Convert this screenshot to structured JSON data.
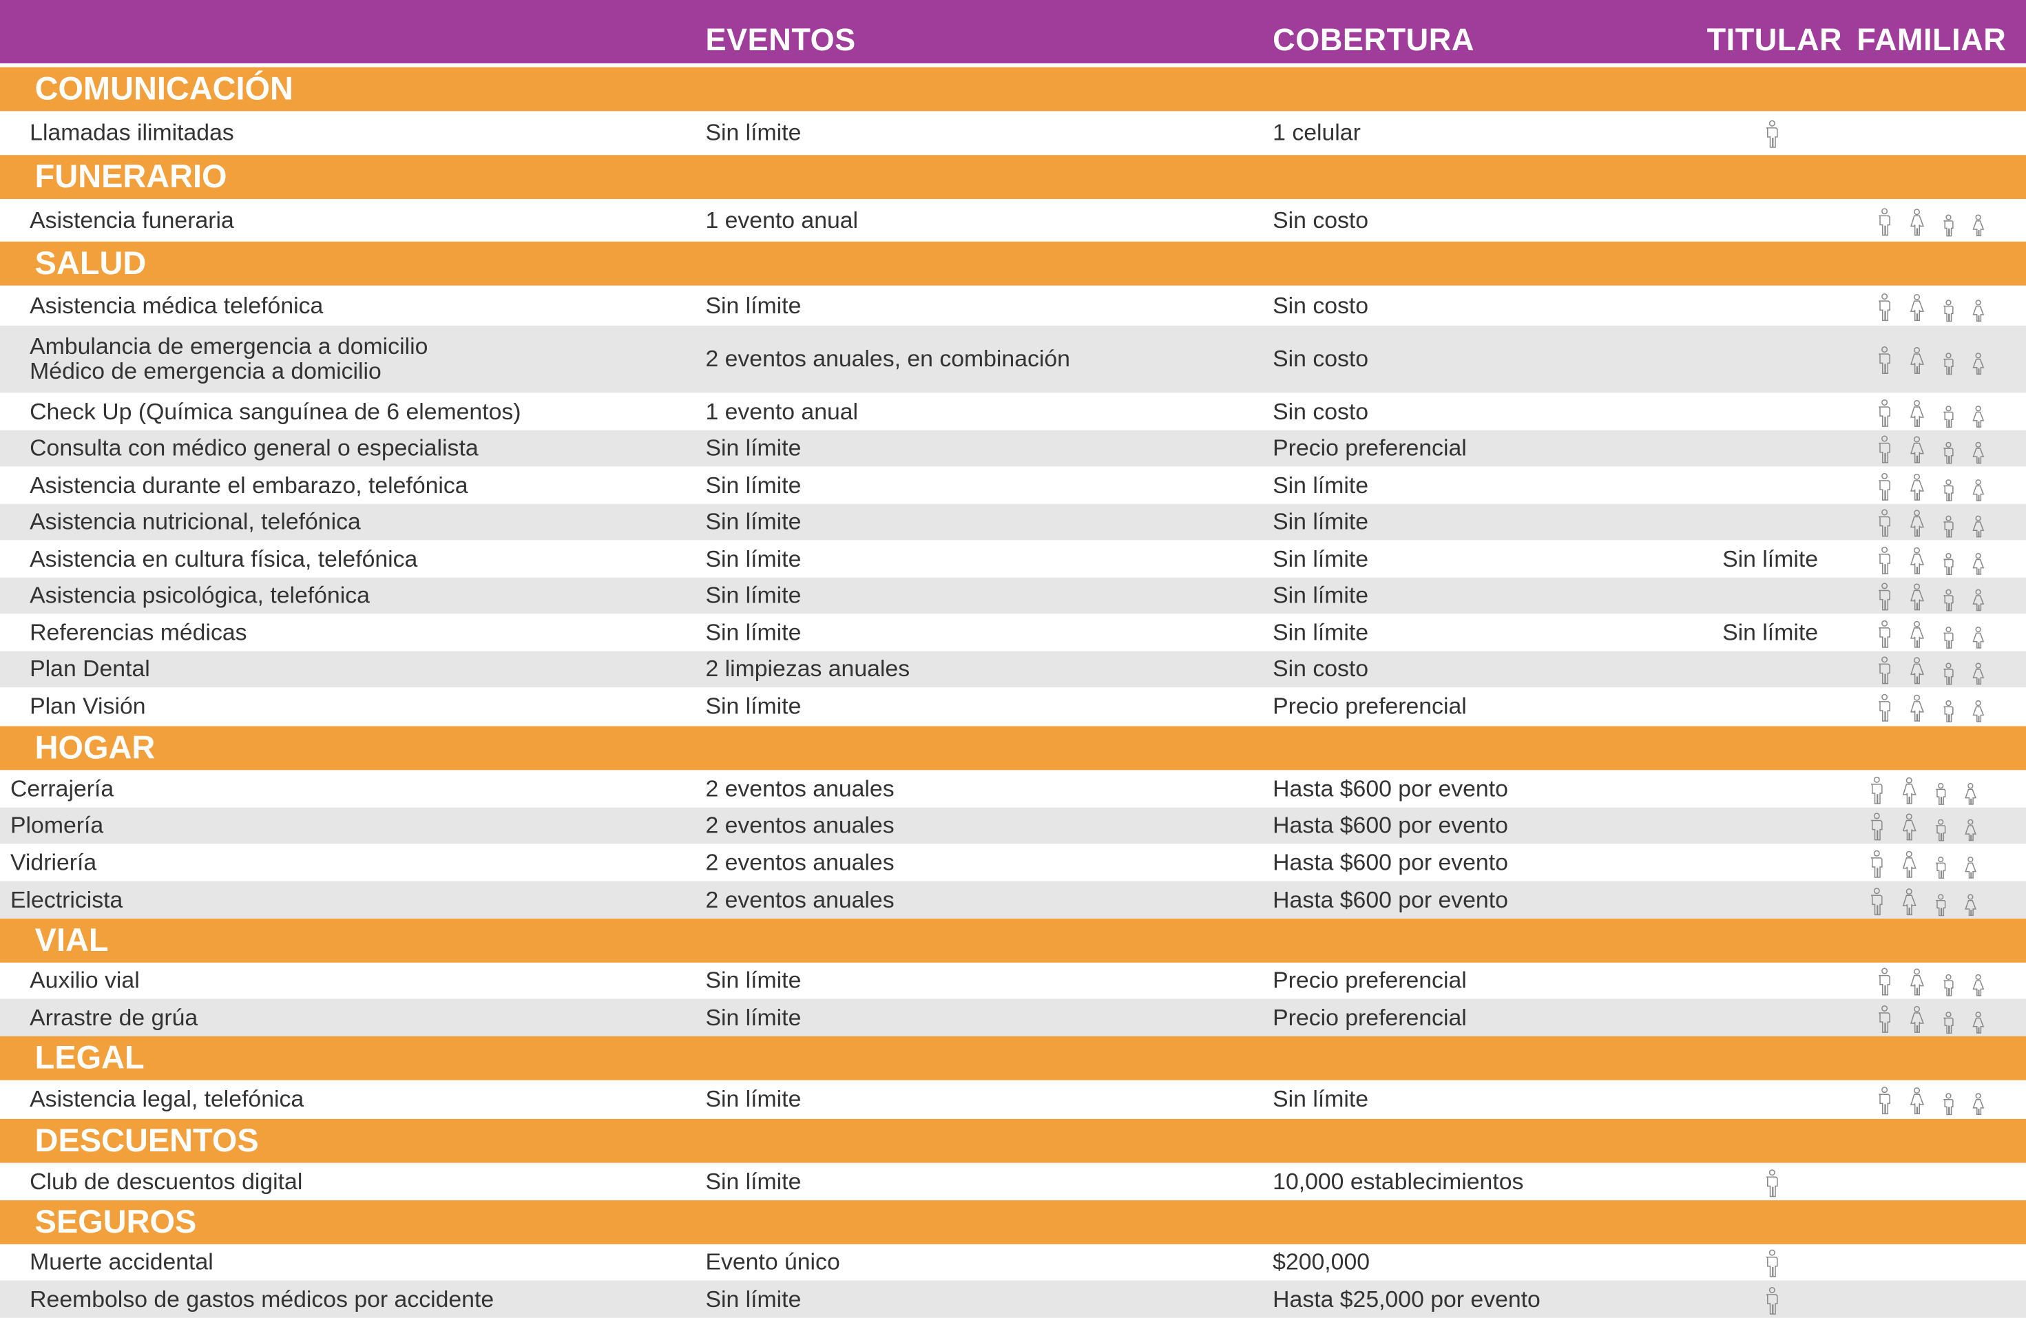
{
  "header": {
    "eventos": "EVENTOS",
    "cobertura": "COBERTURA",
    "titular": "TITULAR",
    "familiar": "FAMILIAR"
  },
  "colors": {
    "header": "#a03c9a",
    "section": "#f2a03c",
    "row_alt": "#e6e6e6"
  },
  "sections": [
    {
      "title": "COMUNICACIÓN",
      "rows": [
        {
          "name": "Llamadas ilimitadas",
          "eventos": "Sin límite",
          "cobertura": "1 celular",
          "titular_icons": [
            "man-icon"
          ],
          "familiar_icons": []
        }
      ]
    },
    {
      "title": "FUNERARIO",
      "rows": [
        {
          "name": "Asistencia funeraria",
          "eventos": "1 evento anual",
          "cobertura": "Sin costo",
          "titular_icons": [],
          "familiar_icons": [
            "man-icon",
            "woman-icon",
            "boy-icon",
            "girl-icon"
          ]
        }
      ]
    },
    {
      "title": "SALUD",
      "rows": [
        {
          "name": "Asistencia médica telefónica",
          "eventos": "Sin límite",
          "cobertura": "Sin costo",
          "titular_icons": [],
          "familiar_icons": [
            "man-icon",
            "woman-icon",
            "boy-icon",
            "girl-icon"
          ]
        },
        {
          "name": "Ambulancia de emergencia a domicilio\nMédico de emergencia a domicilio",
          "eventos": "2 eventos anuales, en combinación",
          "cobertura": "Sin costo",
          "titular_icons": [],
          "familiar_icons": [
            "man-icon",
            "woman-icon",
            "boy-icon",
            "girl-icon"
          ]
        },
        {
          "name": "Check Up (Química sanguínea de 6 elementos)",
          "eventos": "1 evento anual",
          "cobertura": "Sin costo",
          "titular_icons": [],
          "familiar_icons": [
            "man-icon",
            "woman-icon",
            "boy-icon",
            "girl-icon"
          ]
        },
        {
          "name": "Consulta con médico general o especialista",
          "eventos": "Sin límite",
          "cobertura": "Precio preferencial",
          "titular_icons": [],
          "familiar_icons": [
            "man-icon",
            "woman-icon",
            "boy-icon",
            "girl-icon"
          ]
        },
        {
          "name": "Asistencia durante el embarazo, telefónica",
          "eventos": "Sin límite",
          "cobertura": "Sin límite",
          "titular_icons": [],
          "familiar_icons": [
            "man-icon",
            "woman-icon",
            "boy-icon",
            "girl-icon"
          ]
        },
        {
          "name": "Asistencia nutricional, telefónica",
          "eventos": "Sin límite",
          "cobertura": "Sin límite",
          "titular_icons": [],
          "familiar_icons": [
            "man-icon",
            "woman-icon",
            "boy-icon",
            "girl-icon"
          ]
        },
        {
          "name": "Asistencia en cultura física, telefónica",
          "eventos": "Sin límite",
          "cobertura": "Sin límite",
          "titular_text": "Sin límite",
          "titular_icons": [],
          "familiar_icons": [
            "man-icon",
            "woman-icon",
            "boy-icon",
            "girl-icon"
          ]
        },
        {
          "name": "Asistencia psicológica, telefónica",
          "eventos": "Sin límite",
          "cobertura": "Sin límite",
          "titular_icons": [],
          "familiar_icons": [
            "man-icon",
            "woman-icon",
            "boy-icon",
            "girl-icon"
          ]
        },
        {
          "name": "Referencias médicas",
          "eventos": "Sin límite",
          "cobertura": "Sin límite",
          "titular_text": "Sin límite",
          "titular_icons": [],
          "familiar_icons": [
            "man-icon",
            "woman-icon",
            "boy-icon",
            "girl-icon"
          ]
        },
        {
          "name": "Plan Dental",
          "eventos": "2 limpiezas anuales",
          "cobertura": "Sin costo",
          "titular_icons": [],
          "familiar_icons": [
            "man-icon",
            "woman-icon",
            "boy-icon",
            "girl-icon"
          ]
        },
        {
          "name": "Plan Visión",
          "eventos": "Sin límite",
          "cobertura": "Precio preferencial",
          "titular_icons": [],
          "familiar_icons": [
            "man-icon",
            "woman-icon",
            "boy-icon",
            "girl-icon"
          ]
        }
      ]
    },
    {
      "title": "HOGAR",
      "rows": [
        {
          "name": "Cerrajería",
          "eventos": "2 eventos anuales",
          "cobertura": "Hasta $600 por evento",
          "titular_icons": [],
          "familiar_icons": [
            "man-icon",
            "woman-icon",
            "boy-icon",
            "girl-icon"
          ]
        },
        {
          "name": "Plomería",
          "eventos": "2 eventos anuales",
          "cobertura": "Hasta $600 por evento",
          "titular_icons": [],
          "familiar_icons": [
            "man-icon",
            "woman-icon",
            "boy-icon",
            "girl-icon"
          ]
        },
        {
          "name": "Vidriería",
          "eventos": "2 eventos anuales",
          "cobertura": "Hasta $600 por evento",
          "titular_icons": [],
          "familiar_icons": [
            "man-icon",
            "woman-icon",
            "boy-icon",
            "girl-icon"
          ]
        },
        {
          "name": "Electricista",
          "eventos": "2 eventos anuales",
          "cobertura": "Hasta $600 por evento",
          "titular_icons": [],
          "familiar_icons": [
            "man-icon",
            "woman-icon",
            "boy-icon",
            "girl-icon"
          ]
        }
      ]
    },
    {
      "title": "VIAL",
      "rows": [
        {
          "name": "Auxilio vial",
          "eventos": "Sin límite",
          "cobertura": "Precio preferencial",
          "titular_icons": [],
          "familiar_icons": [
            "man-icon",
            "woman-icon",
            "boy-icon",
            "girl-icon"
          ]
        },
        {
          "name": "Arrastre de grúa",
          "eventos": "Sin límite",
          "cobertura": "Precio preferencial",
          "titular_icons": [],
          "familiar_icons": [
            "man-icon",
            "woman-icon",
            "boy-icon",
            "girl-icon"
          ]
        }
      ]
    },
    {
      "title": "LEGAL",
      "rows": [
        {
          "name": "Asistencia legal, telefónica",
          "eventos": "Sin límite",
          "cobertura": "Sin límite",
          "titular_icons": [],
          "familiar_icons": [
            "man-icon",
            "woman-icon",
            "boy-icon",
            "girl-icon"
          ]
        }
      ]
    },
    {
      "title": "DESCUENTOS",
      "rows": [
        {
          "name": "Club de descuentos digital",
          "eventos": "Sin límite",
          "cobertura": "10,000 establecimientos",
          "titular_icons": [
            "man-icon"
          ],
          "familiar_icons": []
        }
      ]
    },
    {
      "title": "SEGUROS",
      "rows": [
        {
          "name": "Muerte accidental",
          "eventos": "Evento único",
          "cobertura": "$200,000",
          "titular_icons": [
            "man-icon"
          ],
          "familiar_icons": []
        },
        {
          "name": "Reembolso de gastos médicos por accidente",
          "eventos": "Sin límite",
          "cobertura": "Hasta $25,000 por evento",
          "titular_icons": [
            "man-icon"
          ],
          "familiar_icons": []
        }
      ]
    }
  ]
}
